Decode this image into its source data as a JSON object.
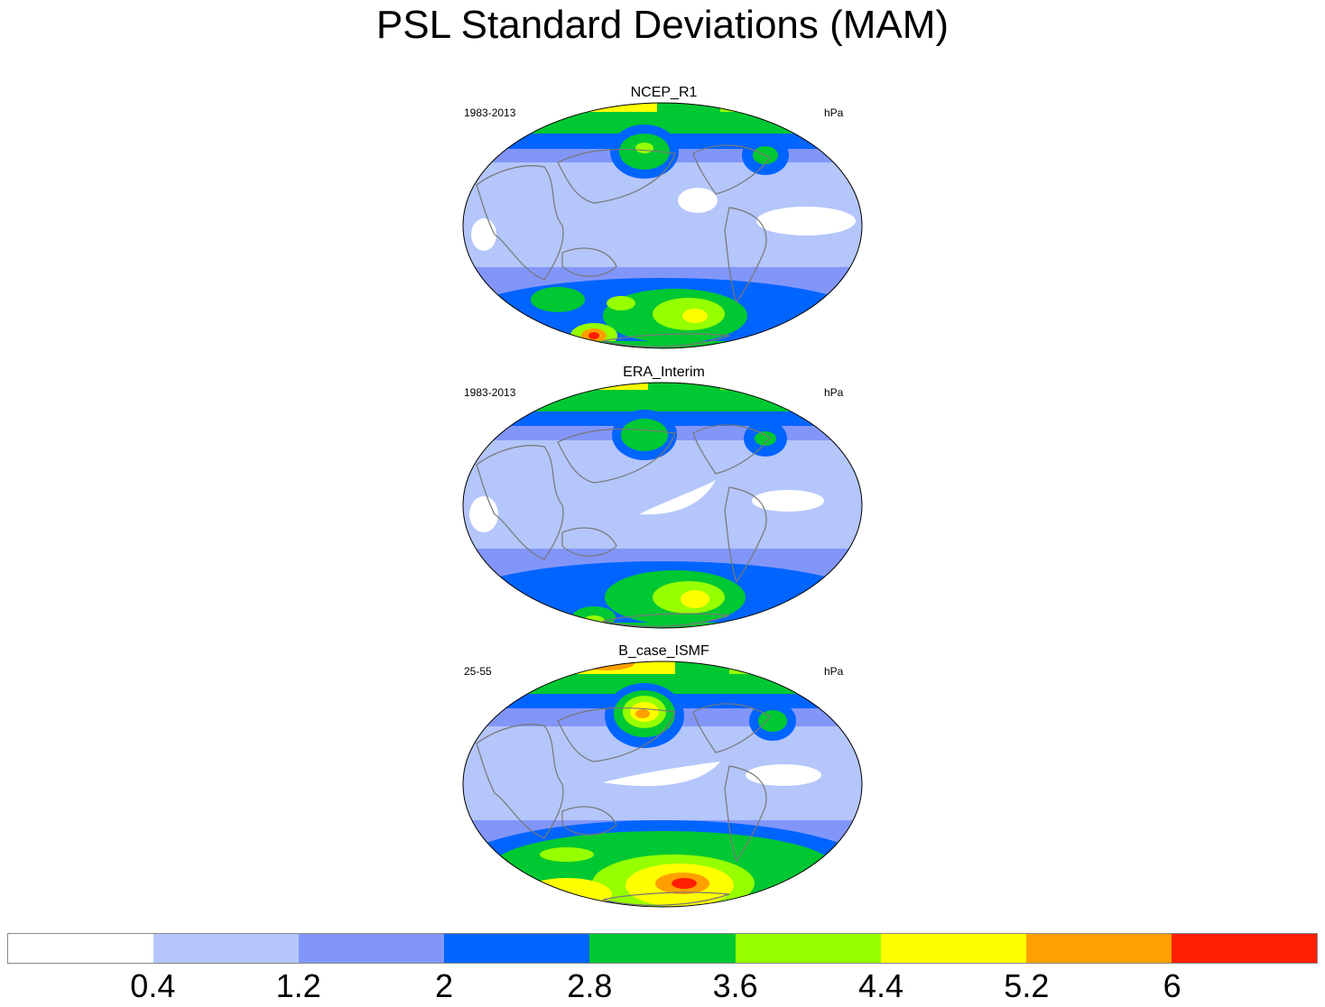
{
  "title": "PSL Standard Deviations (MAM)",
  "panels": [
    {
      "title": "NCEP_R1",
      "left_label": "1983-2013",
      "right_label": "hPa"
    },
    {
      "title": "ERA_Interim",
      "left_label": "1983-2013",
      "right_label": "hPa"
    },
    {
      "title": "B_case_ISMF",
      "left_label": "25-55",
      "right_label": "hPa"
    }
  ],
  "colorbar": {
    "colors": [
      "#ffffff",
      "#b4c6fa",
      "#8296f9",
      "#0064ff",
      "#00c832",
      "#96ff00",
      "#ffff00",
      "#ffa000",
      "#ff1e00"
    ],
    "labels": [
      "0.4",
      "1.2",
      "2",
      "2.8",
      "3.6",
      "4.4",
      "5.2",
      "6"
    ]
  }
}
